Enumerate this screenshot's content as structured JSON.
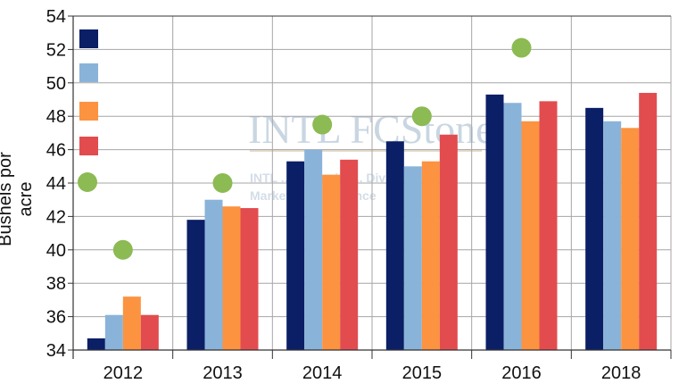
{
  "chart_data": {
    "type": "bar",
    "title": "",
    "xlabel": "",
    "ylabel": "Bushels por acre",
    "ylim": [
      34,
      54
    ],
    "yticks": [
      34,
      36,
      38,
      40,
      42,
      44,
      46,
      48,
      50,
      52,
      54
    ],
    "grid": true,
    "legend_position": "top-left (inside plot, markers only, no labels)",
    "categories": [
      "2012",
      "2013",
      "2014",
      "2015",
      "2016",
      "2018"
    ],
    "series": [
      {
        "name": "",
        "kind": "bar",
        "color": "#0b1f66",
        "values": [
          34.7,
          41.8,
          45.3,
          46.5,
          49.3,
          48.5
        ]
      },
      {
        "name": "",
        "kind": "bar",
        "color": "#8ab3d9",
        "values": [
          36.1,
          43.0,
          46.0,
          45.0,
          48.8,
          47.7
        ]
      },
      {
        "name": "",
        "kind": "bar",
        "color": "#fb9340",
        "values": [
          37.2,
          42.6,
          44.5,
          45.3,
          47.7,
          47.3
        ]
      },
      {
        "name": "",
        "kind": "bar",
        "color": "#e24c4f",
        "values": [
          36.1,
          42.5,
          45.4,
          46.9,
          48.9,
          49.4
        ]
      },
      {
        "name": "",
        "kind": "dot",
        "color": "#8cba53",
        "values": [
          40.0,
          44.0,
          47.5,
          48.0,
          52.1,
          null
        ]
      }
    ],
    "watermark": [
      "INTL FCStone",
      "INTL ... Financial ... Division",
      "Market ... Intelligence"
    ]
  }
}
